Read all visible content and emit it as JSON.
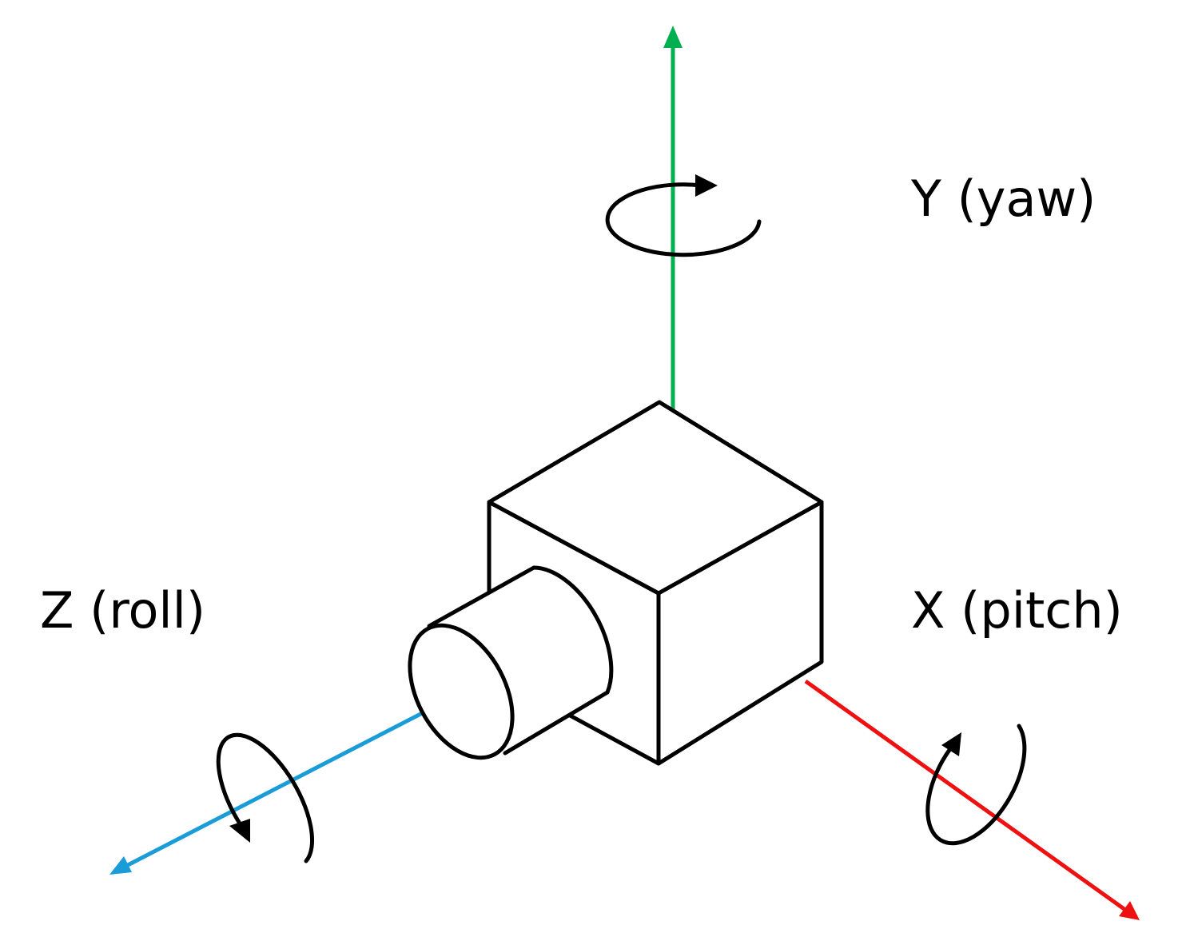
{
  "labels": {
    "y_axis": "Y (yaw)",
    "z_axis": "Z (roll)",
    "x_axis": "X (pitch)"
  }
}
